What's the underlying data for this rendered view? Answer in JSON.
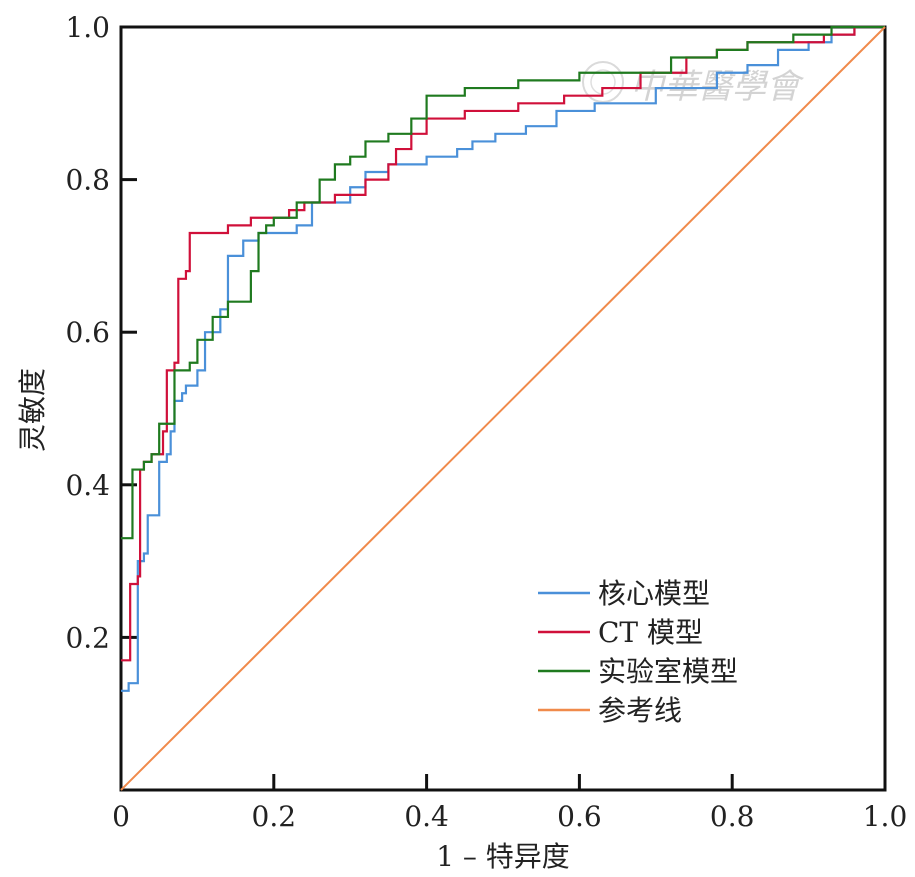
{
  "chart_data": {
    "type": "line",
    "title": "",
    "xlabel": "1 – 特异度",
    "ylabel": "灵敏度",
    "xlim": [
      0,
      1
    ],
    "ylim": [
      0,
      1
    ],
    "x_ticks": [
      "0",
      "0.2",
      "0.4",
      "0.6",
      "0.8",
      "1.0"
    ],
    "y_ticks": [
      "0.2",
      "0.4",
      "0.6",
      "0.8",
      "1.0"
    ],
    "grid": false,
    "legend_position": "bottom-right",
    "series": [
      {
        "name": "核心模型",
        "color": "#4a90d9",
        "points": [
          [
            0,
            0.13
          ],
          [
            0.01,
            0.14
          ],
          [
            0.02,
            0.14
          ],
          [
            0.022,
            0.3
          ],
          [
            0.03,
            0.31
          ],
          [
            0.035,
            0.36
          ],
          [
            0.045,
            0.36
          ],
          [
            0.05,
            0.43
          ],
          [
            0.06,
            0.44
          ],
          [
            0.065,
            0.47
          ],
          [
            0.07,
            0.51
          ],
          [
            0.08,
            0.52
          ],
          [
            0.085,
            0.53
          ],
          [
            0.1,
            0.55
          ],
          [
            0.11,
            0.6
          ],
          [
            0.13,
            0.63
          ],
          [
            0.14,
            0.7
          ],
          [
            0.16,
            0.72
          ],
          [
            0.18,
            0.73
          ],
          [
            0.2,
            0.73
          ],
          [
            0.23,
            0.74
          ],
          [
            0.25,
            0.77
          ],
          [
            0.29,
            0.77
          ],
          [
            0.3,
            0.79
          ],
          [
            0.32,
            0.81
          ],
          [
            0.35,
            0.82
          ],
          [
            0.38,
            0.82
          ],
          [
            0.4,
            0.83
          ],
          [
            0.44,
            0.84
          ],
          [
            0.46,
            0.85
          ],
          [
            0.49,
            0.86
          ],
          [
            0.53,
            0.87
          ],
          [
            0.57,
            0.89
          ],
          [
            0.62,
            0.9
          ],
          [
            0.66,
            0.9
          ],
          [
            0.7,
            0.92
          ],
          [
            0.73,
            0.92
          ],
          [
            0.78,
            0.94
          ],
          [
            0.82,
            0.95
          ],
          [
            0.86,
            0.97
          ],
          [
            0.9,
            0.98
          ],
          [
            0.93,
            0.99
          ],
          [
            0.96,
            1.0
          ],
          [
            1.0,
            1.0
          ]
        ]
      },
      {
        "name": "CT 模型",
        "color": "#d0103a",
        "points": [
          [
            0,
            0.17
          ],
          [
            0.01,
            0.17
          ],
          [
            0.012,
            0.27
          ],
          [
            0.022,
            0.28
          ],
          [
            0.025,
            0.42
          ],
          [
            0.03,
            0.43
          ],
          [
            0.04,
            0.44
          ],
          [
            0.055,
            0.47
          ],
          [
            0.06,
            0.55
          ],
          [
            0.07,
            0.56
          ],
          [
            0.075,
            0.67
          ],
          [
            0.085,
            0.68
          ],
          [
            0.09,
            0.73
          ],
          [
            0.1,
            0.73
          ],
          [
            0.14,
            0.74
          ],
          [
            0.16,
            0.74
          ],
          [
            0.17,
            0.75
          ],
          [
            0.2,
            0.75
          ],
          [
            0.22,
            0.76
          ],
          [
            0.24,
            0.77
          ],
          [
            0.28,
            0.78
          ],
          [
            0.32,
            0.8
          ],
          [
            0.35,
            0.82
          ],
          [
            0.36,
            0.84
          ],
          [
            0.38,
            0.86
          ],
          [
            0.4,
            0.88
          ],
          [
            0.45,
            0.89
          ],
          [
            0.52,
            0.9
          ],
          [
            0.58,
            0.91
          ],
          [
            0.63,
            0.92
          ],
          [
            0.68,
            0.94
          ],
          [
            0.74,
            0.96
          ],
          [
            0.78,
            0.97
          ],
          [
            0.82,
            0.98
          ],
          [
            0.88,
            0.98
          ],
          [
            0.92,
            0.99
          ],
          [
            0.96,
            1.0
          ],
          [
            1.0,
            1.0
          ]
        ]
      },
      {
        "name": "实验室模型",
        "color": "#1f7a1f",
        "points": [
          [
            0,
            0.33
          ],
          [
            0.01,
            0.33
          ],
          [
            0.015,
            0.42
          ],
          [
            0.03,
            0.43
          ],
          [
            0.04,
            0.44
          ],
          [
            0.05,
            0.48
          ],
          [
            0.07,
            0.55
          ],
          [
            0.09,
            0.56
          ],
          [
            0.1,
            0.59
          ],
          [
            0.12,
            0.62
          ],
          [
            0.14,
            0.64
          ],
          [
            0.17,
            0.68
          ],
          [
            0.18,
            0.73
          ],
          [
            0.19,
            0.74
          ],
          [
            0.2,
            0.75
          ],
          [
            0.23,
            0.77
          ],
          [
            0.26,
            0.8
          ],
          [
            0.28,
            0.82
          ],
          [
            0.3,
            0.83
          ],
          [
            0.32,
            0.85
          ],
          [
            0.35,
            0.86
          ],
          [
            0.38,
            0.88
          ],
          [
            0.4,
            0.91
          ],
          [
            0.45,
            0.92
          ],
          [
            0.52,
            0.93
          ],
          [
            0.6,
            0.94
          ],
          [
            0.66,
            0.94
          ],
          [
            0.72,
            0.96
          ],
          [
            0.78,
            0.97
          ],
          [
            0.82,
            0.98
          ],
          [
            0.88,
            0.99
          ],
          [
            0.93,
            1.0
          ],
          [
            1.0,
            1.0
          ]
        ]
      },
      {
        "name": "参考线",
        "color": "#f08a4b",
        "points": [
          [
            0,
            0
          ],
          [
            1,
            1
          ]
        ]
      }
    ]
  },
  "watermark": {
    "text": "中華醫學會"
  }
}
